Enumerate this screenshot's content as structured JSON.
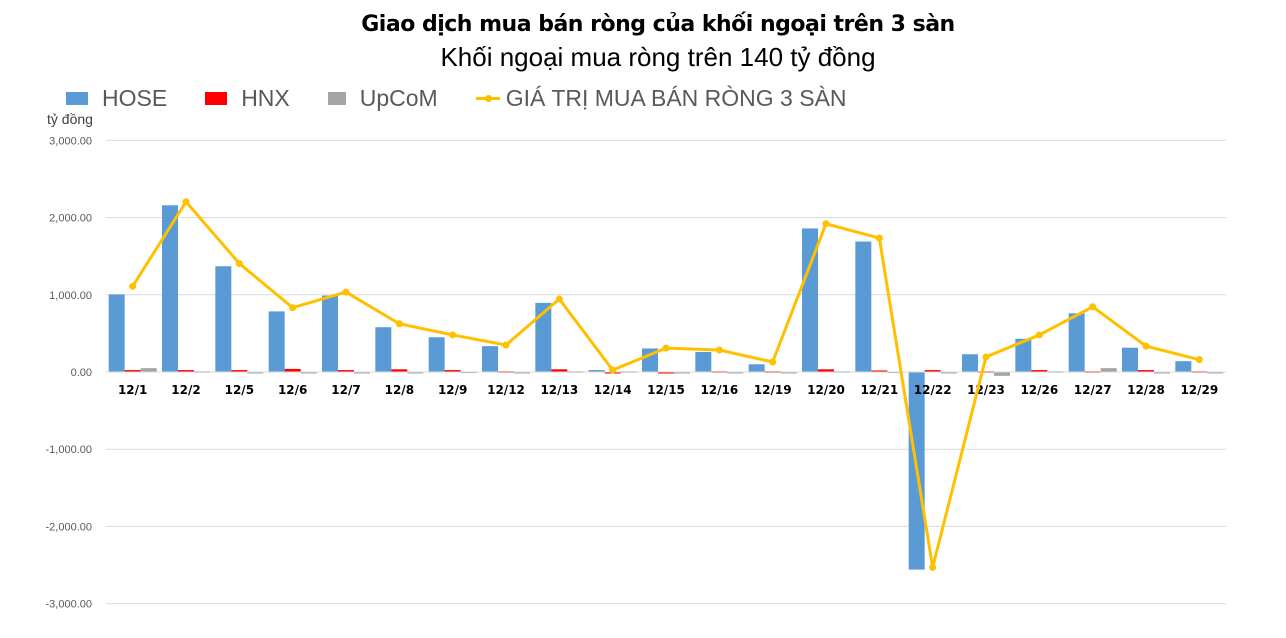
{
  "chart_data": {
    "type": "bar",
    "title": "Giao dịch mua bán ròng của khối ngoại trên 3 sàn",
    "subtitle": "Khối ngoại mua ròng trên 140 tỷ đồng",
    "ylabel": "tỷ đồng",
    "xlabel": "",
    "ylim": [
      -3000,
      3000
    ],
    "yticks": [
      "3,000.00",
      "2,000.00",
      "1,000.00",
      "0.00",
      "-1,000.00",
      "-2,000.00",
      "-3,000.00"
    ],
    "grid": true,
    "legend_position": "top",
    "categories": [
      "12/1",
      "12/2",
      "12/5",
      "12/6",
      "12/7",
      "12/8",
      "12/9",
      "12/12",
      "12/13",
      "12/14",
      "12/15",
      "12/16",
      "12/19",
      "12/20",
      "12/21",
      "12/22",
      "12/23",
      "12/26",
      "12/27",
      "12/28",
      "12/29"
    ],
    "series": [
      {
        "name": "HOSE",
        "type": "bar",
        "color": "#5B9BD5",
        "values": [
          1005,
          2160,
          1370,
          785,
          990,
          580,
          450,
          335,
          895,
          25,
          305,
          260,
          100,
          1860,
          1690,
          -2560,
          230,
          430,
          760,
          315,
          140
        ]
      },
      {
        "name": "HNX",
        "type": "bar",
        "color": "#FF0000",
        "values": [
          25,
          25,
          25,
          40,
          25,
          35,
          25,
          10,
          35,
          -10,
          -10,
          10,
          10,
          35,
          20,
          25,
          10,
          25,
          10,
          25,
          10
        ]
      },
      {
        "name": "UpCoM",
        "type": "bar",
        "color": "#A5A5A5",
        "values": [
          50,
          10,
          -5,
          -5,
          -5,
          -5,
          5,
          -5,
          10,
          10,
          -5,
          -5,
          -5,
          10,
          5,
          -5,
          -50,
          10,
          50,
          -5,
          -5
        ]
      },
      {
        "name": "GIÁ TRỊ MUA BÁN RÒNG 3 SÀN",
        "type": "line",
        "color": "#FFC000",
        "values": [
          1110,
          2205,
          1405,
          833,
          1035,
          625,
          480,
          350,
          945,
          25,
          310,
          285,
          130,
          1920,
          1735,
          -2530,
          195,
          480,
          845,
          335,
          160
        ]
      }
    ]
  },
  "legend": {
    "hose": "HOSE",
    "hnx": "HNX",
    "upcom": "UpCoM",
    "net": "GIÁ TRỊ MUA BÁN RÒNG 3 SÀN"
  },
  "colors": {
    "hose": "#5B9BD5",
    "hnx": "#FF0000",
    "upcom": "#A5A5A5",
    "net": "#FFC000",
    "grid": "#D9D9D9"
  }
}
